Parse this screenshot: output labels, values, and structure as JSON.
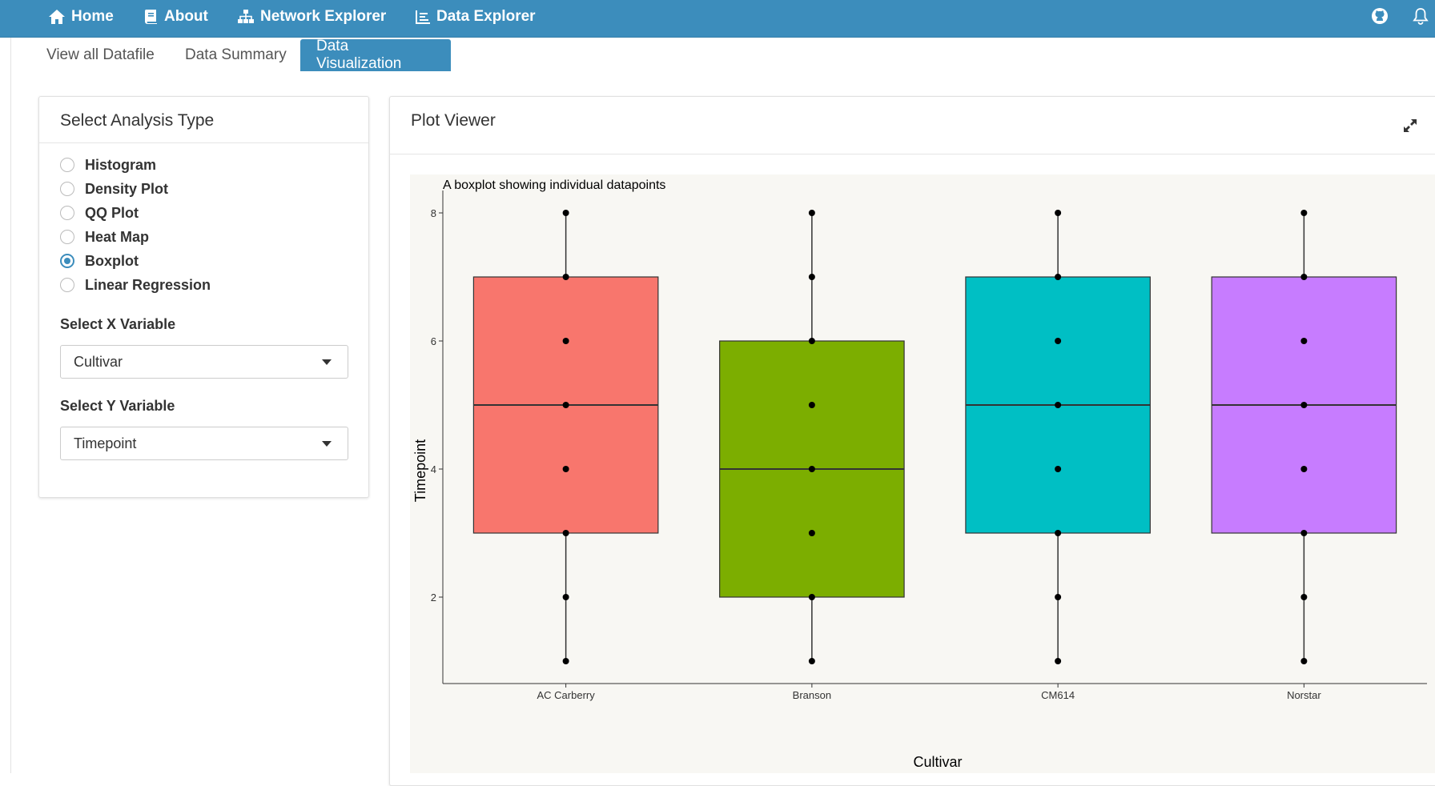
{
  "navbar": {
    "items": [
      {
        "label": "Home",
        "icon": "home-icon"
      },
      {
        "label": "About",
        "icon": "book-icon"
      },
      {
        "label": "Network Explorer",
        "icon": "sitemap-icon"
      },
      {
        "label": "Data Explorer",
        "icon": "chart-icon"
      }
    ],
    "right_icons": [
      "github-icon",
      "bell-icon"
    ],
    "color": "#3c8dbc"
  },
  "tabs": [
    {
      "label": "View all Datafile",
      "active": false
    },
    {
      "label": "Data Summary",
      "active": false
    },
    {
      "label": "Data Visualization",
      "active": true
    }
  ],
  "analysis_panel": {
    "title": "Select Analysis Type",
    "options": [
      {
        "label": "Histogram",
        "checked": false
      },
      {
        "label": "Density Plot",
        "checked": false
      },
      {
        "label": "QQ Plot",
        "checked": false
      },
      {
        "label": "Heat Map",
        "checked": false
      },
      {
        "label": "Boxplot",
        "checked": true
      },
      {
        "label": "Linear Regression",
        "checked": false
      }
    ],
    "x_variable": {
      "label": "Select X Variable",
      "value": "Cultivar"
    },
    "y_variable": {
      "label": "Select Y Variable",
      "value": "Timepoint"
    }
  },
  "plot_panel": {
    "title": "Plot Viewer",
    "expand_icon": "expand-icon"
  },
  "chart_data": {
    "type": "boxplot",
    "title": "A boxplot showing individual datapoints",
    "xlabel": "Cultivar",
    "ylabel": "Timepoint",
    "ylim": [
      0.65,
      8.35
    ],
    "yticks": [
      2,
      4,
      6,
      8
    ],
    "categories": [
      "AC Carberry",
      "Branson",
      "CM614",
      "Norstar"
    ],
    "boxes": [
      {
        "category": "AC Carberry",
        "min": 1,
        "q1": 3,
        "median": 5,
        "q3": 7,
        "max": 8,
        "color": "#f8766d"
      },
      {
        "category": "Branson",
        "min": 1,
        "q1": 2,
        "median": 4,
        "q3": 6,
        "max": 8,
        "color": "#7cae00"
      },
      {
        "category": "CM614",
        "min": 1,
        "q1": 3,
        "median": 5,
        "q3": 7,
        "max": 8,
        "color": "#00bfc4"
      },
      {
        "category": "Norstar",
        "min": 1,
        "q1": 3,
        "median": 5,
        "q3": 7,
        "max": 8,
        "color": "#c77cff"
      }
    ],
    "points": [
      {
        "category": "AC Carberry",
        "values": [
          1,
          2,
          3,
          4,
          5,
          6,
          7,
          8
        ]
      },
      {
        "category": "Branson",
        "values": [
          1,
          2,
          3,
          4,
          5,
          6,
          7,
          8
        ]
      },
      {
        "category": "CM614",
        "values": [
          1,
          2,
          3,
          4,
          5,
          6,
          7,
          8
        ]
      },
      {
        "category": "Norstar",
        "values": [
          1,
          2,
          3,
          4,
          5,
          6,
          7,
          8
        ]
      }
    ],
    "background": "#f8f7f3",
    "grid": false,
    "legend": "none"
  }
}
